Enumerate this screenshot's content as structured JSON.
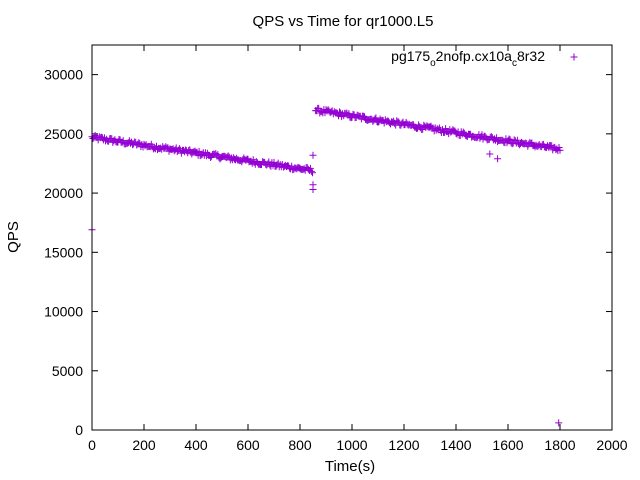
{
  "chart_data": {
    "type": "scatter",
    "title": "QPS vs Time for qr1000.L5",
    "xlabel": "Time(s)",
    "ylabel": "QPS",
    "xlim": [
      0,
      2000
    ],
    "ylim": [
      0,
      32500
    ],
    "x_ticks": [
      "0",
      "200",
      "400",
      "600",
      "800",
      "1000",
      "1200",
      "1400",
      "1600",
      "1800",
      "2000"
    ],
    "y_ticks": [
      "0",
      "5000",
      "10000",
      "15000",
      "20000",
      "25000",
      "30000"
    ],
    "legend": {
      "position": "top-right",
      "label_parts": [
        "pg175",
        "o",
        "2nofp.cx10a",
        "c",
        "8r32"
      ]
    },
    "series": [
      {
        "name": "pg175_o2nofp.cx10a_c8r32",
        "color": "#9400d3",
        "marker": "plus",
        "trends": [
          {
            "x_start": 0,
            "x_end": 850,
            "y_start": 24700,
            "y_end": 21900,
            "step": 4,
            "noise": 200
          },
          {
            "x_start": 860,
            "x_end": 1800,
            "y_start": 27000,
            "y_end": 23700,
            "step": 4,
            "noise": 200
          }
        ],
        "points": [
          [
            0,
            16900
          ],
          [
            850,
            23200
          ],
          [
            850,
            20700
          ],
          [
            850,
            20300
          ],
          [
            1530,
            23300
          ],
          [
            1560,
            22900
          ],
          [
            1795,
            600
          ]
        ]
      }
    ]
  }
}
